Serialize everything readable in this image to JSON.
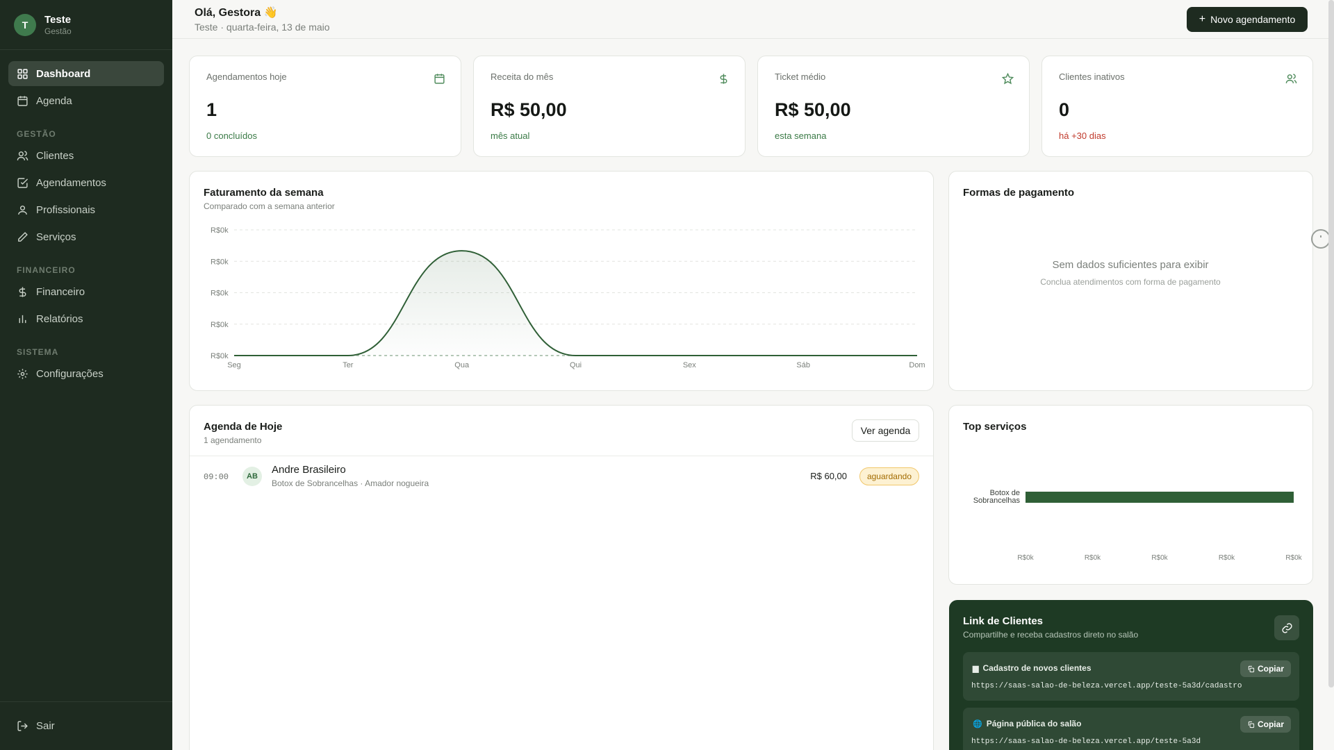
{
  "brand": {
    "initial": "T",
    "name": "Teste",
    "subtitle": "Gestão"
  },
  "nav": {
    "dashboard": "Dashboard",
    "agenda": "Agenda",
    "section_gestao": "GESTÃO",
    "clientes": "Clientes",
    "agendamentos": "Agendamentos",
    "profissionais": "Profissionais",
    "servicos": "Serviços",
    "section_financeiro": "FINANCEIRO",
    "financeiro": "Financeiro",
    "relatorios": "Relatórios",
    "section_sistema": "SISTEMA",
    "configuracoes": "Configurações",
    "sair": "Sair"
  },
  "header": {
    "greeting": "Olá, Gestora 👋",
    "date_line": "Teste · quarta-feira, 13 de maio",
    "new_button": "Novo agendamento"
  },
  "kpis": {
    "today": {
      "label": "Agendamentos hoje",
      "value": "1",
      "sub": "0 concluídos",
      "icon": "calendar-icon"
    },
    "revenue": {
      "label": "Receita do mês",
      "value": "R$ 50,00",
      "sub": "mês atual",
      "icon": "dollar-icon"
    },
    "ticket": {
      "label": "Ticket médio",
      "value": "R$ 50,00",
      "sub": "esta semana",
      "icon": "star-icon"
    },
    "inactive": {
      "label": "Clientes inativos",
      "value": "0",
      "sub": "há +30 dias",
      "icon": "users-icon"
    }
  },
  "weekly": {
    "title": "Faturamento da semana",
    "subtitle": "Comparado com a semana anterior"
  },
  "payment": {
    "title": "Formas de pagamento",
    "empty_title": "Sem dados suficientes para exibir",
    "empty_sub": "Conclua atendimentos com forma de pagamento"
  },
  "agenda_today": {
    "title": "Agenda de Hoje",
    "subtitle": "1 agendamento",
    "button": "Ver agenda",
    "items": [
      {
        "time": "09:00",
        "initials": "AB",
        "name": "Andre Brasileiro",
        "detail": "Botox de Sobrancelhas · Amador nogueira",
        "price": "R$ 60,00",
        "status": "aguardando"
      }
    ]
  },
  "top_services": {
    "title": "Top serviços"
  },
  "client_link": {
    "title": "Link de Clientes",
    "subtitle": "Compartilhe e receba cadastros direto no salão",
    "items": [
      {
        "glyph": "▆",
        "label": "Cadastro de novos clientes",
        "url": "https://saas-salao-de-beleza.vercel.app/teste-5a3d/cadastro",
        "copy": "Copiar"
      },
      {
        "glyph": "🌐",
        "label": "Página pública do salão",
        "url": "https://saas-salao-de-beleza.vercel.app/teste-5a3d",
        "copy": "Copiar"
      }
    ]
  },
  "colors": {
    "sidebar": "#1e2b20",
    "accent": "#2f5f36",
    "positive": "#3a7a46",
    "negative": "#c0392b"
  },
  "chart_data": [
    {
      "type": "area",
      "title": "Faturamento da semana",
      "subtitle": "Comparado com a semana anterior",
      "categories": [
        "Seg",
        "Ter",
        "Qua",
        "Qui",
        "Sex",
        "Sáb",
        "Dom"
      ],
      "series": [
        {
          "values": [
            0,
            0,
            50,
            0,
            0,
            0,
            0
          ]
        },
        {
          "values": [
            0,
            0,
            0,
            0,
            0,
            0,
            0
          ]
        }
      ],
      "ylim": [
        0,
        60
      ],
      "yticks": [
        0,
        15,
        30,
        45,
        60
      ],
      "ytick_labels": [
        "R$0k",
        "R$0k",
        "R$0k",
        "R$0k",
        "R$0k"
      ],
      "grid": true
    },
    {
      "type": "bar",
      "orientation": "horizontal",
      "title": "Top serviços",
      "categories": [
        "Botox de Sobrancelhas"
      ],
      "values": [
        1
      ],
      "xlim": [
        0,
        1
      ],
      "xtick_labels": [
        "R$0k",
        "R$0k",
        "R$0k",
        "R$0k",
        "R$0k"
      ],
      "grid": false
    }
  ]
}
